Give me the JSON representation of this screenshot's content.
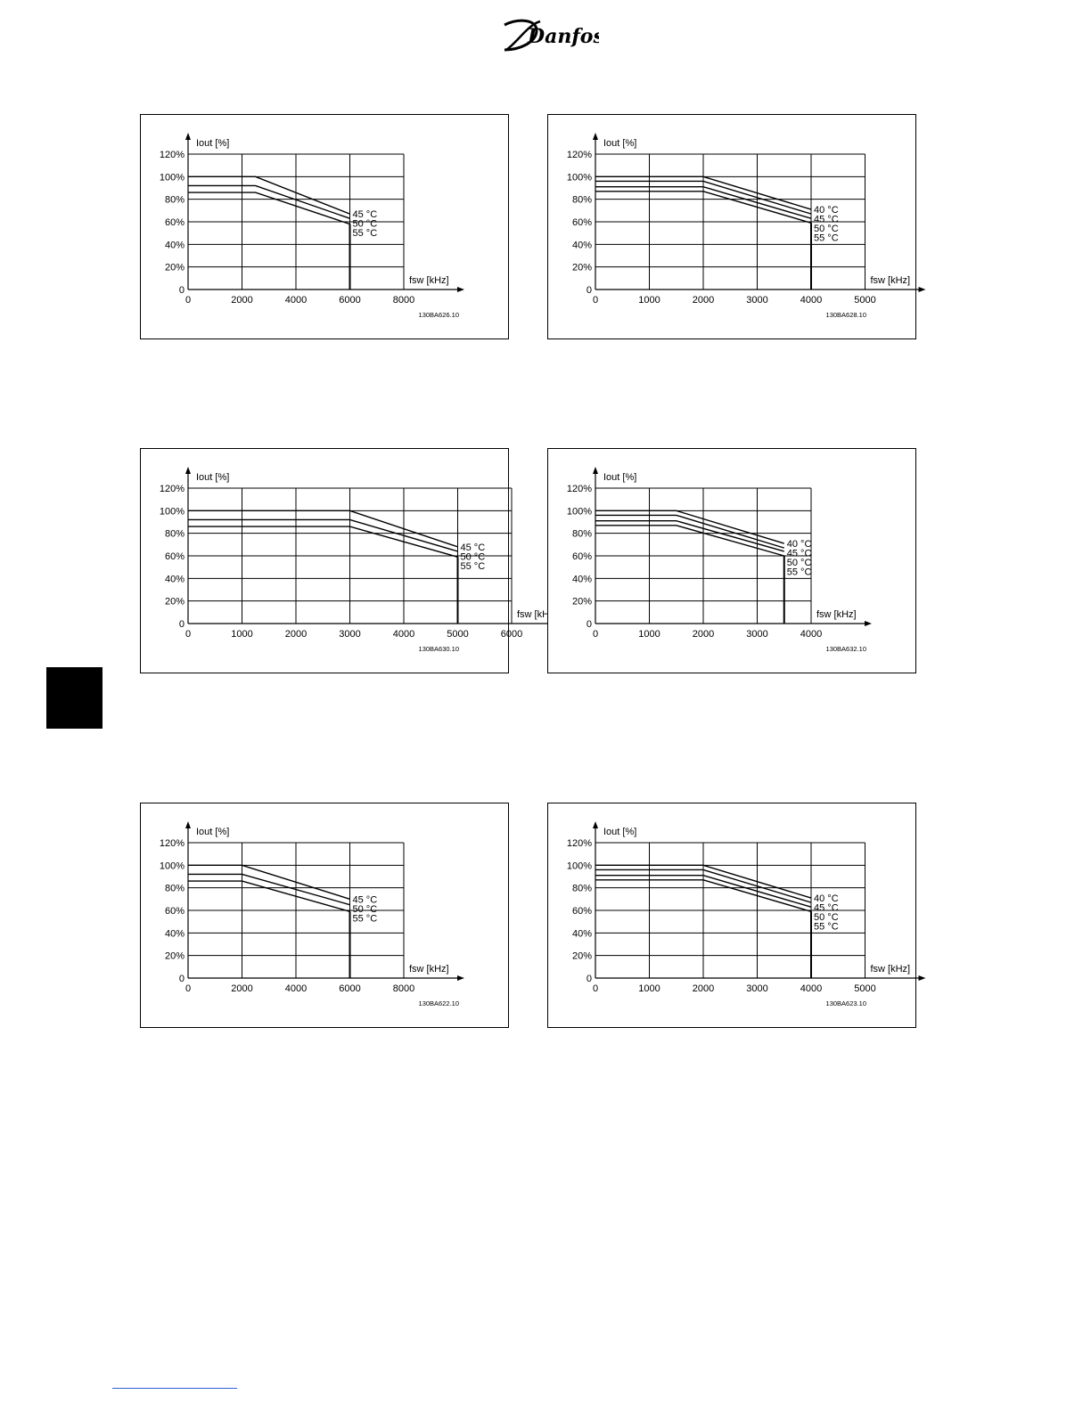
{
  "logo": {
    "text": "Danfoss"
  },
  "charts": [
    {
      "chart_data": {
        "type": "line",
        "title": "",
        "ylabel": "Iout [%]",
        "xlabel": "fsw [kHz]",
        "code": "130BA626.10",
        "xlim": [
          0,
          8000
        ],
        "ylim": [
          0,
          120
        ],
        "xticks": [
          0,
          2000,
          4000,
          6000,
          8000
        ],
        "yticks": [
          0,
          20,
          40,
          60,
          80,
          100,
          120
        ],
        "ytick_labels": [
          "0",
          "20%",
          "40%",
          "60%",
          "80%",
          "100%",
          "120%"
        ],
        "cutoff_x": 6000,
        "series": [
          {
            "name": "45 °C",
            "x": [
              0,
              2500,
              6000
            ],
            "y": [
              100,
              100,
              67
            ]
          },
          {
            "name": "50 °C",
            "x": [
              0,
              2500,
              6000
            ],
            "y": [
              92,
              92,
              63
            ]
          },
          {
            "name": "55 °C",
            "x": [
              0,
              2500,
              6000
            ],
            "y": [
              86,
              86,
              58
            ]
          }
        ]
      }
    },
    {
      "chart_data": {
        "type": "line",
        "title": "",
        "ylabel": "Iout [%]",
        "xlabel": "fsw [kHz]",
        "code": "130BA628.10",
        "xlim": [
          0,
          5000
        ],
        "ylim": [
          0,
          120
        ],
        "xticks": [
          0,
          1000,
          2000,
          3000,
          4000,
          5000
        ],
        "yticks": [
          0,
          20,
          40,
          60,
          80,
          100,
          120
        ],
        "ytick_labels": [
          "0",
          "20%",
          "40%",
          "60%",
          "80%",
          "100%",
          "120%"
        ],
        "cutoff_x": 4000,
        "series": [
          {
            "name": "40 °C",
            "x": [
              0,
              2000,
              4000
            ],
            "y": [
              100,
              100,
              71
            ]
          },
          {
            "name": "45 °C",
            "x": [
              0,
              2000,
              4000
            ],
            "y": [
              96,
              96,
              67
            ]
          },
          {
            "name": "50 °C",
            "x": [
              0,
              2000,
              4000
            ],
            "y": [
              91,
              91,
              63
            ]
          },
          {
            "name": "55 °C",
            "x": [
              0,
              2000,
              4000
            ],
            "y": [
              87,
              87,
              59
            ]
          }
        ]
      }
    },
    {
      "chart_data": {
        "type": "line",
        "title": "",
        "ylabel": "Iout [%]",
        "xlabel": "fsw [kHz]",
        "code": "130BA630.10",
        "xlim": [
          0,
          6000
        ],
        "ylim": [
          0,
          120
        ],
        "xticks": [
          0,
          1000,
          2000,
          3000,
          4000,
          5000,
          6000
        ],
        "yticks": [
          0,
          20,
          40,
          60,
          80,
          100,
          120
        ],
        "ytick_labels": [
          "0",
          "20%",
          "40%",
          "60%",
          "80%",
          "100%",
          "120%"
        ],
        "cutoff_x": 5000,
        "series": [
          {
            "name": "45 °C",
            "x": [
              0,
              3000,
              5000
            ],
            "y": [
              100,
              100,
              68
            ]
          },
          {
            "name": "50 °C",
            "x": [
              0,
              3000,
              5000
            ],
            "y": [
              92,
              92,
              64
            ]
          },
          {
            "name": "55 °C",
            "x": [
              0,
              3000,
              5000
            ],
            "y": [
              86,
              86,
              59
            ]
          }
        ]
      }
    },
    {
      "chart_data": {
        "type": "line",
        "title": "",
        "ylabel": "Iout [%]",
        "xlabel": "fsw [kHz]",
        "code": "130BA632.10",
        "xlim": [
          0,
          4000
        ],
        "ylim": [
          0,
          120
        ],
        "xticks": [
          0,
          1000,
          2000,
          3000,
          4000
        ],
        "yticks": [
          0,
          20,
          40,
          60,
          80,
          100,
          120
        ],
        "ytick_labels": [
          "0",
          "20%",
          "40%",
          "60%",
          "80%",
          "100%",
          "120%"
        ],
        "cutoff_x": 3500,
        "series": [
          {
            "name": "40 °C",
            "x": [
              0,
              1500,
              3500
            ],
            "y": [
              100,
              100,
              71
            ]
          },
          {
            "name": "45 °C",
            "x": [
              0,
              1500,
              3500
            ],
            "y": [
              96,
              96,
              67
            ]
          },
          {
            "name": "50 °C",
            "x": [
              0,
              1500,
              3500
            ],
            "y": [
              91,
              91,
              64
            ]
          },
          {
            "name": "55 °C",
            "x": [
              0,
              1500,
              3500
            ],
            "y": [
              87,
              87,
              60
            ]
          }
        ]
      }
    },
    {
      "chart_data": {
        "type": "line",
        "title": "",
        "ylabel": "Iout [%]",
        "xlabel": "fsw [kHz]",
        "code": "130BA622.10",
        "xlim": [
          0,
          8000
        ],
        "ylim": [
          0,
          120
        ],
        "xticks": [
          0,
          2000,
          4000,
          6000,
          8000
        ],
        "yticks": [
          0,
          20,
          40,
          60,
          80,
          100,
          120
        ],
        "ytick_labels": [
          "0",
          "20%",
          "40%",
          "60%",
          "80%",
          "100%",
          "120%"
        ],
        "cutoff_x": 6000,
        "series": [
          {
            "name": "45 °C",
            "x": [
              0,
              2000,
              6000
            ],
            "y": [
              100,
              100,
              70
            ]
          },
          {
            "name": "50 °C",
            "x": [
              0,
              2000,
              6000
            ],
            "y": [
              92,
              92,
              65
            ]
          },
          {
            "name": "55 °C",
            "x": [
              0,
              2000,
              6000
            ],
            "y": [
              86,
              86,
              59
            ]
          }
        ]
      }
    },
    {
      "chart_data": {
        "type": "line",
        "title": "",
        "ylabel": "Iout [%]",
        "xlabel": "fsw [kHz]",
        "code": "130BA623.10",
        "xlim": [
          0,
          5000
        ],
        "ylim": [
          0,
          120
        ],
        "xticks": [
          0,
          1000,
          2000,
          3000,
          4000,
          5000
        ],
        "yticks": [
          0,
          20,
          40,
          60,
          80,
          100,
          120
        ],
        "ytick_labels": [
          "0",
          "20%",
          "40%",
          "60%",
          "80%",
          "100%",
          "120%"
        ],
        "cutoff_x": 4000,
        "series": [
          {
            "name": "40 °C",
            "x": [
              0,
              2000,
              4000
            ],
            "y": [
              100,
              100,
              71
            ]
          },
          {
            "name": "45 °C",
            "x": [
              0,
              2000,
              4000
            ],
            "y": [
              96,
              96,
              67
            ]
          },
          {
            "name": "50 °C",
            "x": [
              0,
              2000,
              4000
            ],
            "y": [
              91,
              91,
              63
            ]
          },
          {
            "name": "55 °C",
            "x": [
              0,
              2000,
              4000
            ],
            "y": [
              87,
              87,
              59
            ]
          }
        ]
      }
    }
  ]
}
